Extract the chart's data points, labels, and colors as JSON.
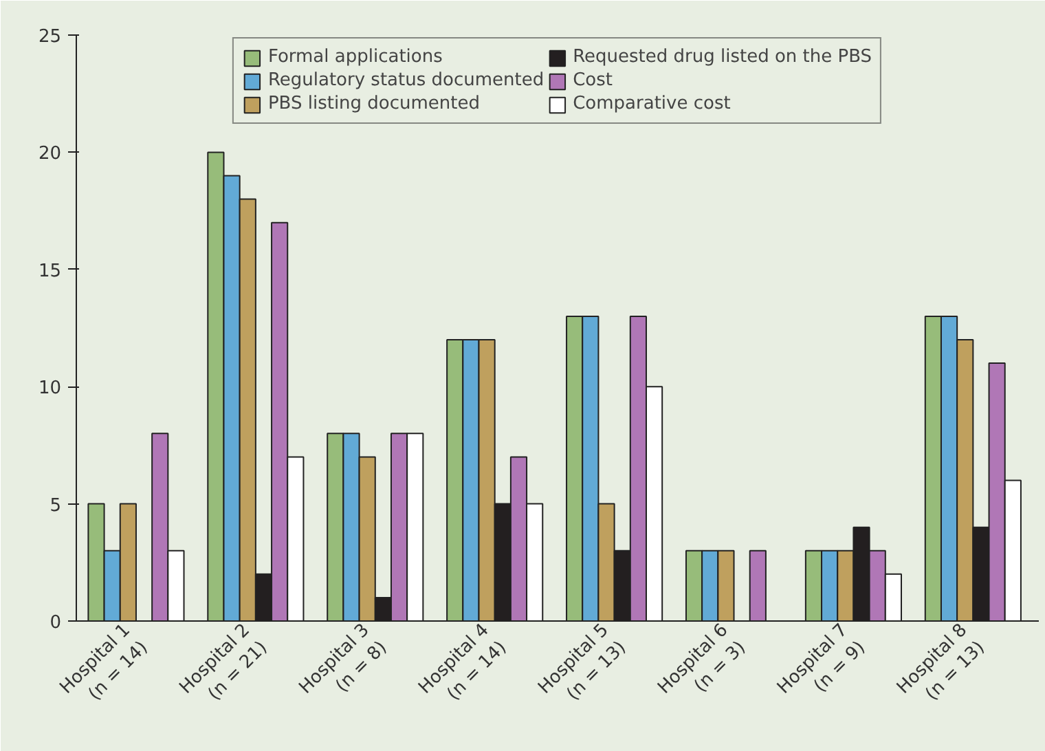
{
  "chart_data": {
    "type": "bar",
    "categories": [
      "Hospital 1\n(n = 14)",
      "Hospital 2\n(n = 21)",
      "Hospital 3\n(n = 8)",
      "Hospital 4\n(n = 14)",
      "Hospital 5\n(n = 13)",
      "Hospital 6\n(n = 3)",
      "Hospital 7\n(n = 9)",
      "Hospital 8\n(n = 13)"
    ],
    "series": [
      {
        "name": "Formal applications",
        "color": "#97bc7a",
        "values": [
          5,
          20,
          8,
          12,
          13,
          3,
          3,
          13
        ]
      },
      {
        "name": "Regulatory status documented",
        "color": "#62aad6",
        "values": [
          3,
          19,
          8,
          12,
          13,
          3,
          3,
          13
        ]
      },
      {
        "name": "PBS listing documented",
        "color": "#bfa05e",
        "values": [
          5,
          18,
          7,
          12,
          5,
          3,
          3,
          12
        ]
      },
      {
        "name": "Requested drug listed on the PBS",
        "color": "#231f20",
        "values": [
          null,
          2,
          1,
          5,
          3,
          null,
          4,
          4
        ]
      },
      {
        "name": "Cost",
        "color": "#b077b6",
        "values": [
          8,
          17,
          8,
          7,
          13,
          3,
          3,
          11
        ]
      },
      {
        "name": "Comparative cost",
        "color": "#ffffff",
        "values": [
          3,
          7,
          8,
          5,
          10,
          null,
          2,
          6
        ]
      }
    ],
    "ylim": [
      0,
      25
    ],
    "yticks": [
      0,
      5,
      10,
      15,
      20,
      25
    ],
    "grid": false,
    "legend": "top"
  }
}
